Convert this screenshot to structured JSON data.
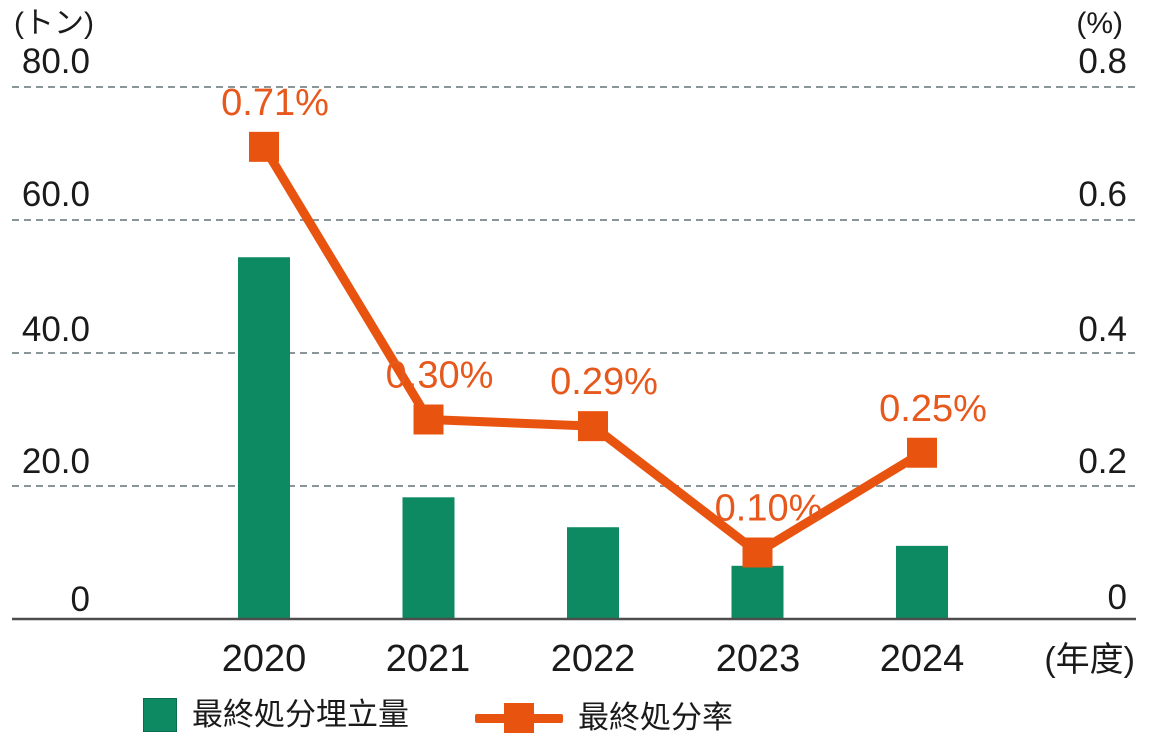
{
  "units": {
    "left": "(トン)",
    "right": "(%)",
    "x": "(年度)"
  },
  "left_axis": {
    "ticks": [
      "80.0",
      "60.0",
      "40.0",
      "20.0",
      "0"
    ],
    "values": [
      80,
      60,
      40,
      20,
      0
    ]
  },
  "right_axis": {
    "ticks": [
      "0.8",
      "0.6",
      "0.4",
      "0.2",
      "0"
    ],
    "values": [
      0.8,
      0.6,
      0.4,
      0.2,
      0
    ]
  },
  "chart_data": {
    "type": "bar+line",
    "categories": [
      "2020",
      "2021",
      "2022",
      "2023",
      "2024"
    ],
    "series": [
      {
        "name": "最終処分埋立量",
        "type": "bar",
        "axis": "left",
        "unit": "トン",
        "color": "#0E8A62",
        "values": [
          54.4,
          18.3,
          13.8,
          8.0,
          11.0
        ]
      },
      {
        "name": "最終処分率",
        "type": "line",
        "axis": "right",
        "unit": "%",
        "color": "#E8540F",
        "values": [
          0.71,
          0.3,
          0.29,
          0.1,
          0.25
        ],
        "labels": [
          "0.71%",
          "0.30%",
          "0.29%",
          "0.10%",
          "0.25%"
        ]
      }
    ],
    "xlabel": "年度",
    "ylim_left": [
      0,
      80
    ],
    "ylim_right": [
      0,
      0.8
    ],
    "grid": true,
    "legend_position": "bottom"
  },
  "legend": [
    {
      "label": "最終処分埋立量",
      "marker": "square",
      "color": "#0E8A62"
    },
    {
      "label": "最終処分率",
      "marker": "line-square",
      "color": "#E8540F"
    }
  ],
  "colors": {
    "bar": "#0E8A62",
    "line": "#E8540F",
    "data_label": "#E7581D",
    "grid": "#8A9599",
    "axis": "#4D4D4D",
    "text": "#1A1A1A"
  }
}
